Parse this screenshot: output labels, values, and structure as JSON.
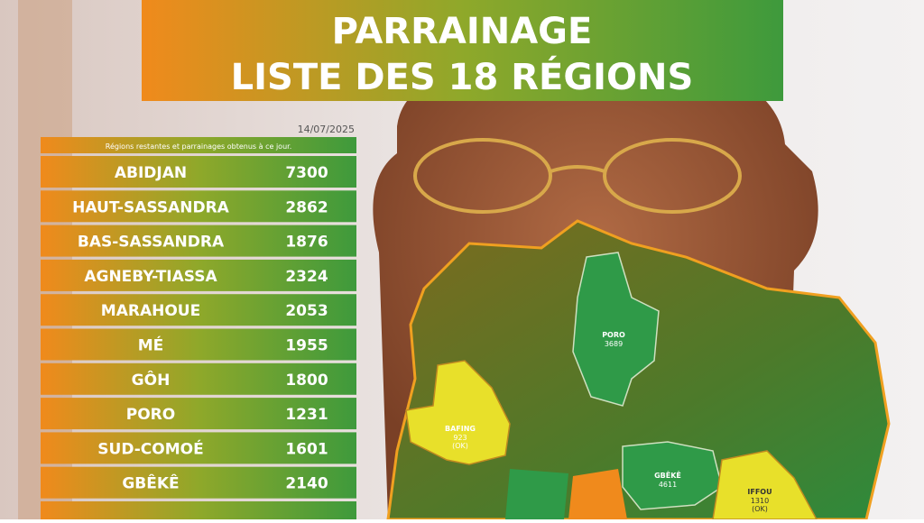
{
  "header": {
    "title_line1": "PARRAINAGE",
    "title_line2": "LISTE DES 18 RÉGIONS"
  },
  "date": "14/07/2025",
  "table": {
    "caption": "Régions restantes et parrainages obtenus à ce jour.",
    "rows": [
      [
        "ABIDJAN",
        7300
      ],
      [
        "HAUT-SASSANDRA",
        2862
      ],
      [
        "BAS-SASSANDRA",
        1876
      ],
      [
        "AGNEBY-TIASSA",
        2324
      ],
      [
        "MARAHOUE",
        2053
      ],
      [
        "MÉ",
        1955
      ],
      [
        "GÔH",
        1800
      ],
      [
        "PORO",
        1231
      ],
      [
        "SUD-COMOÉ",
        1601
      ],
      [
        "GBÊKÊ",
        2140
      ]
    ]
  },
  "map": {
    "regions": [
      {
        "name": "PORO",
        "count": 3689
      },
      {
        "name": "BAFING",
        "count": 923,
        "status": "(OK)"
      },
      {
        "name": "GBÊKÊ",
        "count": 4611
      },
      {
        "name": "IFFOU",
        "count": 1310,
        "status": "(OK)"
      }
    ]
  }
}
